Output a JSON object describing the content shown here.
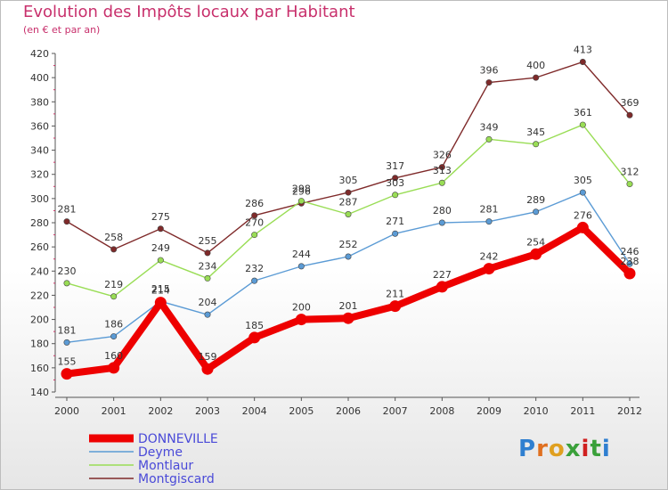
{
  "title": "Evolution des Impôts locaux par Habitant",
  "subtitle": "(en € et par an)",
  "logo_text": "Proxiti",
  "chart_data": {
    "type": "line",
    "x": [
      2000,
      2001,
      2002,
      2003,
      2004,
      2005,
      2006,
      2007,
      2008,
      2009,
      2010,
      2011,
      2012
    ],
    "ylim": [
      140,
      420
    ],
    "yticks": [
      140,
      160,
      180,
      200,
      220,
      240,
      260,
      280,
      300,
      320,
      340,
      360,
      380,
      400,
      420
    ],
    "grid": false,
    "legend_position": "bottom-left",
    "series": [
      {
        "name": "DONNEVILLE",
        "color": "#ee0000",
        "values": [
          155,
          160,
          214,
          159,
          185,
          200,
          201,
          211,
          227,
          242,
          254,
          276,
          238
        ]
      },
      {
        "name": "Deyme",
        "color": "#5b9bd5",
        "values": [
          181,
          186,
          215,
          204,
          232,
          244,
          252,
          271,
          280,
          281,
          289,
          305,
          246
        ]
      },
      {
        "name": "Montlaur",
        "color": "#99dd55",
        "values": [
          230,
          219,
          249,
          234,
          270,
          298,
          287,
          303,
          313,
          349,
          345,
          361,
          312
        ]
      },
      {
        "name": "Montgiscard",
        "color": "#7f2a2a",
        "values": [
          281,
          258,
          275,
          255,
          286,
          296,
          305,
          317,
          326,
          396,
          400,
          413,
          369
        ]
      }
    ]
  }
}
